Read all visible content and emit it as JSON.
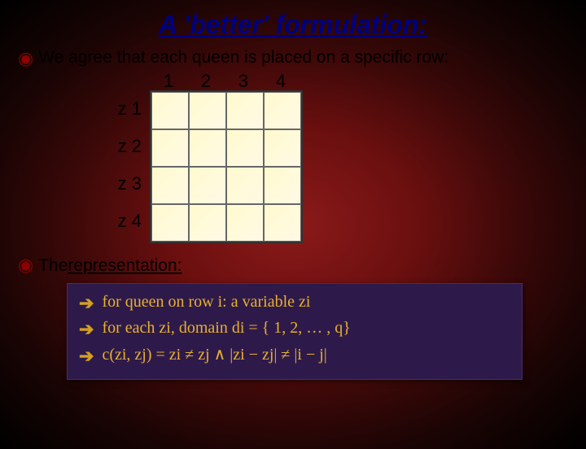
{
  "title": "A 'better' formulation:",
  "bullet1": "We agree that each queen is placed on a specific row:",
  "grid": {
    "cols": [
      "1",
      "2",
      "3",
      "4"
    ],
    "rows": [
      "z 1",
      "z 2",
      "z 3",
      "z 4"
    ],
    "size": 4,
    "cell_bg": "#fffacd",
    "border_color": "#666666"
  },
  "bullet2_prefix": "The ",
  "bullet2_underline": "representation:",
  "items": [
    {
      "text": "for queen on row i: a variable zi"
    },
    {
      "text": "for each zi, domain di = { 1, 2, … , q}"
    },
    {
      "text": "c(zi, zj) =   zi ≠ zj ∧ |zi − zj| ≠ |i − j|"
    }
  ],
  "colors": {
    "title": "#000080",
    "bullet_sym": "#8b0000",
    "subbox_bg": "#2e1a4a",
    "sub_text": "#e8b030",
    "arrow": "#d4a020"
  }
}
